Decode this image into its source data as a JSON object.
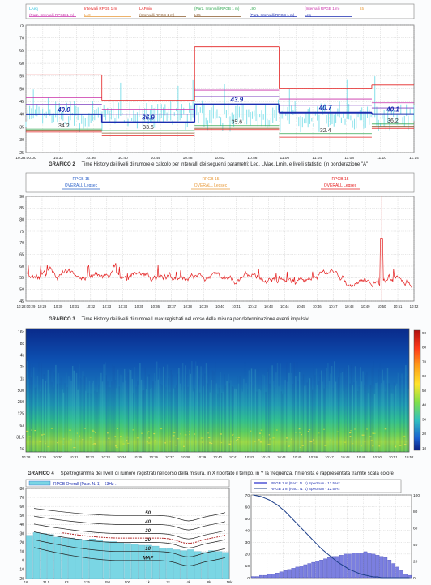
{
  "colors": {
    "leq": "#1b2db0",
    "laeq_fill": "#8fe3ec",
    "red": "#e42020",
    "green": "#33a852",
    "pink": "#c82fa8",
    "orange": "#e89a3a",
    "purple": "#7b3fbf",
    "brown": "#8a5a2b",
    "grid": "#b9b9b9",
    "bar": "#7ad6e4",
    "barblue": "#7b7fe0",
    "curve": "#1d3f8a"
  },
  "chart1": {
    "legend": [
      {
        "text": "LAeq",
        "color": "#2bc0dc"
      },
      {
        "text": "Intervalli RPGB 1 m",
        "color": "#e42020"
      },
      {
        "text": "LAFmin",
        "color": "#e42020"
      },
      {
        "text": "(Parz. Intervalli RPGB 1 m)",
        "color": "#33a852"
      },
      {
        "text": "L90",
        "color": "#33a852"
      },
      {
        "text": "(Intervalli RPGB 1 m)",
        "color": "#c82fa8"
      },
      {
        "text": "L5",
        "color": "#e89a3a"
      },
      {
        "text": "(Parz. Intervalli RPGB 1 m)",
        "color": "#c82fa8"
      },
      {
        "text": "L10",
        "color": "#e89a3a"
      },
      {
        "text": "(Intervalli RPGB 1 m)",
        "color": "#8a5a2b"
      },
      {
        "text": "L95",
        "color": "#8a5a2b"
      },
      {
        "text": "(Parz. Intervalli RPGB 1 m)",
        "color": "#1b2db0"
      },
      {
        "text": "Leq",
        "color": "#1b2db0"
      }
    ]
  },
  "chart2_title": {
    "label": "GRAFICO 2",
    "text": "Time History dei livelli di rumore e calcolo per intervalli dei seguenti parametri: Leq, LMax, Lmin, e livelli statistici (in ponderazione \"A\""
  },
  "chart2": {
    "legend": [
      {
        "a": "RPGB 15",
        "b": "OVERALL Leqsec",
        "color": "#2a60c8"
      },
      {
        "a": "RPGB 15",
        "b": "OVERALL Leqsec",
        "color": "#e89a3a"
      },
      {
        "a": "RPGB 15",
        "b": "OVERALL Leqsec",
        "color": "#e42020"
      }
    ]
  },
  "chart3_title": {
    "label": "GRAFICO 3",
    "text": "Time History dei livelli di rumore Lmax registrati nel corso della misura per determinazione eventi impulsivi"
  },
  "chart4_title": {
    "label": "GRAFICO 4",
    "text": "Spettrogramma dei livelli di rumore registrati nel corso della misura, in X riportato il tempo, in Y la frequenza, l'intensita e rappresentata tramite scala colore"
  },
  "chart5": {
    "legend": [
      {
        "text": "RPGB Overall (Parz. N. 1) - 63Hz-.."
      }
    ],
    "iso_labels": [
      "50",
      "40",
      "30",
      "20",
      "10",
      "MAF"
    ]
  },
  "chart6": {
    "legend": [
      {
        "text": "RPGB 1 m (Parz. N. 1) Spectrum - 12.5 Hz"
      },
      {
        "text": "RPGB 1 m (Parz. N. 1) Spectrum - 12.5 Hz"
      }
    ]
  },
  "chart_data": [
    {
      "type": "line",
      "ylim": [
        25,
        75
      ],
      "yticks": [
        25,
        30,
        35,
        40,
        45,
        50,
        55,
        60,
        65,
        70,
        75
      ],
      "xticks": [
        "10:28:00:00",
        "10:32",
        "10:36",
        "10:40",
        "10:44",
        "10:48",
        "10:52",
        "10:56",
        "11:00",
        "11:04",
        "11:08",
        "11:10",
        "11:14"
      ],
      "intervals": [
        {
          "start": "10:28",
          "end": "10:37",
          "Leq": 40.0,
          "L90": 34.2,
          "LMax": 55.5,
          "Lmin": 33.0,
          "L5": 46.5,
          "L10": 44.0,
          "L95": 33.8
        },
        {
          "start": "10:37",
          "end": "10:48",
          "Leq": 36.9,
          "L90": 33.6,
          "LMax": 45.5,
          "Lmin": 31.5,
          "L5": 42.0,
          "L10": 40.0,
          "L95": 32.6
        },
        {
          "start": "10:48",
          "end": "10:58",
          "Leq": 43.9,
          "L90": 35.6,
          "LMax": 66.5,
          "Lmin": 34.0,
          "L5": 49.5,
          "L10": 47.0,
          "L95": 34.5
        },
        {
          "start": "10:58",
          "end": "11:09",
          "Leq": 40.7,
          "L90": 32.4,
          "LMax": 50.0,
          "Lmin": 31.0,
          "L5": 46.0,
          "L10": 43.5,
          "L95": 31.8
        },
        {
          "start": "11:09",
          "end": "11:14",
          "Leq": 40.1,
          "L90": 36.2,
          "LMax": 51.5,
          "Lmin": 34.5,
          "L5": 44.5,
          "L10": 42.5,
          "L95": 35.3
        }
      ],
      "laeq_mean": 39.0
    },
    {
      "type": "line",
      "ylim": [
        45,
        90
      ],
      "yticks": [
        45,
        50,
        55,
        60,
        65,
        70,
        75,
        80,
        85,
        90
      ],
      "xticks": [
        "10:28:00:29",
        "10:29",
        "10:30",
        "10:31",
        "10:32",
        "10:33",
        "10:34",
        "10:35",
        "10:36",
        "10:37",
        "10:38",
        "10:39",
        "10:40",
        "10:41",
        "10:42",
        "10:43",
        "10:44",
        "10:45",
        "10:46",
        "10:47",
        "10:48",
        "10:49",
        "10:50",
        "10:51",
        "10:52"
      ],
      "mean_level": 55.0,
      "peak": {
        "time": "10:50",
        "value": 72.0
      }
    },
    {
      "type": "heatmap",
      "yticks": [
        "16k",
        "8k",
        "4k",
        "2k",
        "1k",
        "500",
        "250",
        "125",
        "63",
        "31.5",
        "16"
      ],
      "xticks": [
        "10:28",
        "10:29",
        "10:30",
        "10:31",
        "10:32",
        "10:33",
        "10:34",
        "10:35",
        "10:36",
        "10:37",
        "10:38",
        "10:39",
        "10:40",
        "10:41",
        "10:42",
        "10:43",
        "10:44",
        "10:45",
        "10:46",
        "10:47",
        "10:48",
        "10:49",
        "10:50",
        "10:51",
        "10:52"
      ],
      "colorbar": [
        "90",
        "80",
        "70",
        "60",
        "50",
        "40",
        "30",
        "20",
        "10"
      ]
    },
    {
      "type": "bar",
      "ylim": [
        -20,
        80
      ],
      "yticks": [
        80,
        70,
        60,
        50,
        40,
        30,
        20,
        10,
        0,
        -10,
        -20
      ],
      "xticks": [
        "16",
        "31.5",
        "63",
        "125",
        "250",
        "500",
        "1k",
        "2k",
        "4k",
        "8k",
        "16k"
      ],
      "values": [
        28,
        31,
        30,
        29,
        26,
        25,
        25,
        24,
        23,
        24,
        22,
        21,
        21,
        20,
        19,
        18,
        17,
        17,
        16,
        14,
        13,
        12,
        11,
        12,
        10,
        9,
        11,
        10,
        9
      ]
    },
    {
      "type": "bar",
      "ylim": [
        0,
        70
      ],
      "yticks_left": [
        0,
        10,
        20,
        30,
        40,
        50,
        60,
        70
      ],
      "yticks_right": [
        0,
        20,
        40,
        60,
        80,
        100
      ],
      "values": [
        1,
        1,
        2,
        2,
        3,
        3,
        4,
        5,
        6,
        7,
        8,
        9,
        10,
        11,
        12,
        13,
        14,
        15,
        16,
        17,
        18,
        18,
        19,
        20,
        20,
        21,
        21,
        21,
        22,
        21,
        20,
        19,
        18,
        17,
        15,
        12,
        9,
        6,
        3,
        2
      ],
      "cumulative": [
        100,
        99,
        98,
        96,
        94,
        91,
        88,
        84,
        80,
        75,
        70,
        65,
        60,
        55,
        50,
        45,
        40,
        35,
        31,
        27,
        23,
        19,
        16,
        13,
        10,
        8,
        6,
        4,
        3,
        2,
        1,
        1,
        0,
        0,
        0,
        0,
        0,
        0,
        0,
        0
      ]
    }
  ]
}
